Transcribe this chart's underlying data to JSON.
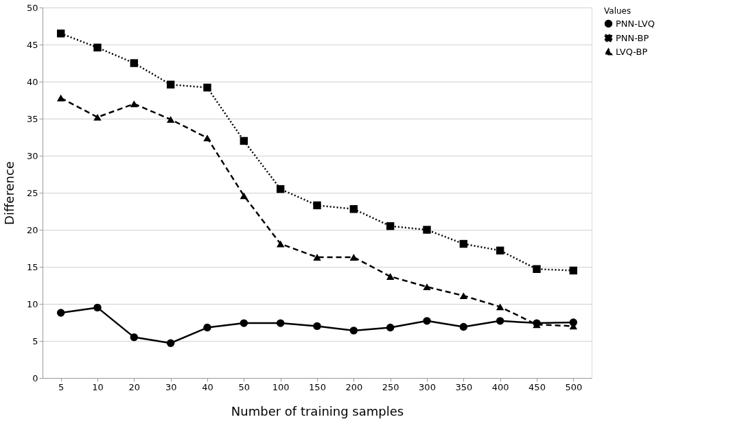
{
  "chart_data": {
    "type": "line",
    "xlabel": "Number of training samples",
    "ylabel": "Difference",
    "legend_title": "Values",
    "categories": [
      "5",
      "10",
      "20",
      "30",
      "40",
      "50",
      "100",
      "150",
      "200",
      "250",
      "300",
      "350",
      "400",
      "450",
      "500"
    ],
    "series": [
      {
        "name": "PNN-LVQ",
        "color": "#000000",
        "marker": "circle",
        "line_style": "solid",
        "values": [
          8.8,
          9.5,
          5.5,
          4.7,
          6.8,
          7.4,
          7.4,
          7.0,
          6.4,
          6.8,
          7.7,
          6.9,
          7.7,
          7.4,
          7.5
        ]
      },
      {
        "name": "PNN-BP",
        "color": "#000000",
        "marker": "square",
        "line_style": "dotted",
        "values": [
          46.5,
          44.6,
          42.5,
          39.6,
          39.2,
          32.0,
          25.5,
          23.3,
          22.8,
          20.5,
          20.0,
          18.1,
          17.2,
          14.7,
          14.5
        ]
      },
      {
        "name": "LVQ-BP",
        "color": "#000000",
        "marker": "triangle",
        "line_style": "dashed",
        "values": [
          37.8,
          35.2,
          37.0,
          34.9,
          32.4,
          24.6,
          18.1,
          16.3,
          16.3,
          13.7,
          12.3,
          11.1,
          9.6,
          7.2,
          7.0
        ]
      }
    ],
    "ylim": [
      0,
      50
    ],
    "yticks": [
      0,
      5,
      10,
      15,
      20,
      25,
      30,
      35,
      40,
      45,
      50
    ],
    "grid": "y",
    "legend": "right"
  }
}
